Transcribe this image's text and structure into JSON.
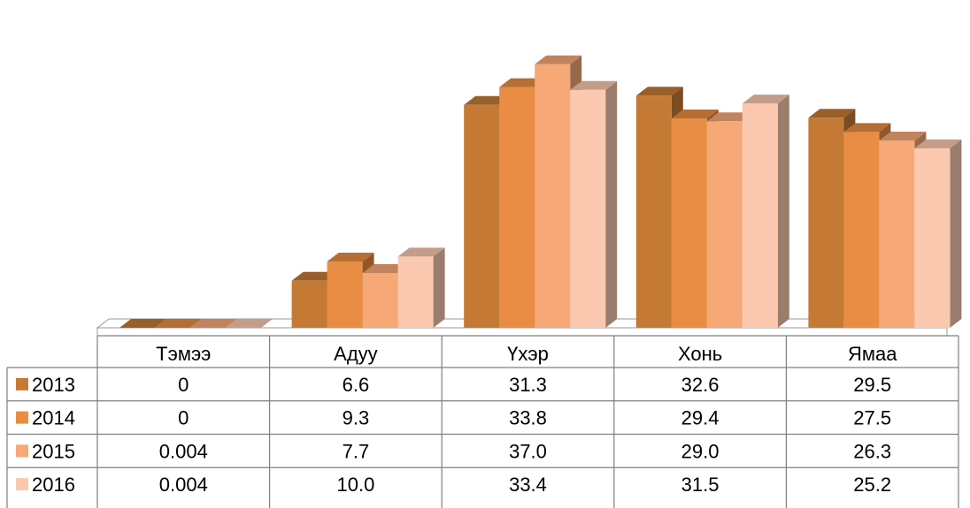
{
  "chart_data": {
    "type": "bar",
    "variant": "3d-clustered-with-data-table",
    "categories": [
      "Тэмээ",
      "Адуу",
      "Үхэр",
      "Хонь",
      "Ямаа"
    ],
    "series": [
      {
        "name": "2013",
        "color": "#C47A35",
        "values": [
          0,
          6.6,
          31.3,
          32.6,
          29.5
        ],
        "labels": [
          "0",
          "6.6",
          "31.3",
          "32.6",
          "29.5"
        ]
      },
      {
        "name": "2014",
        "color": "#E88D43",
        "values": [
          0,
          9.3,
          33.8,
          29.4,
          27.5
        ],
        "labels": [
          "0",
          "9.3",
          "33.8",
          "29.4",
          "27.5"
        ]
      },
      {
        "name": "2015",
        "color": "#F7A877",
        "values": [
          0.004,
          7.7,
          37.0,
          29.0,
          26.3
        ],
        "labels": [
          "0.004",
          "7.7",
          "37.0",
          "29.0",
          "26.3"
        ]
      },
      {
        "name": "2016",
        "color": "#FAC9B0",
        "values": [
          0.004,
          10.0,
          33.4,
          31.5,
          25.2
        ],
        "labels": [
          "0.004",
          "10.0",
          "33.4",
          "31.5",
          "25.2"
        ]
      }
    ],
    "ylim": [
      0,
      37
    ],
    "grid": false,
    "legend": "data-table-left"
  }
}
